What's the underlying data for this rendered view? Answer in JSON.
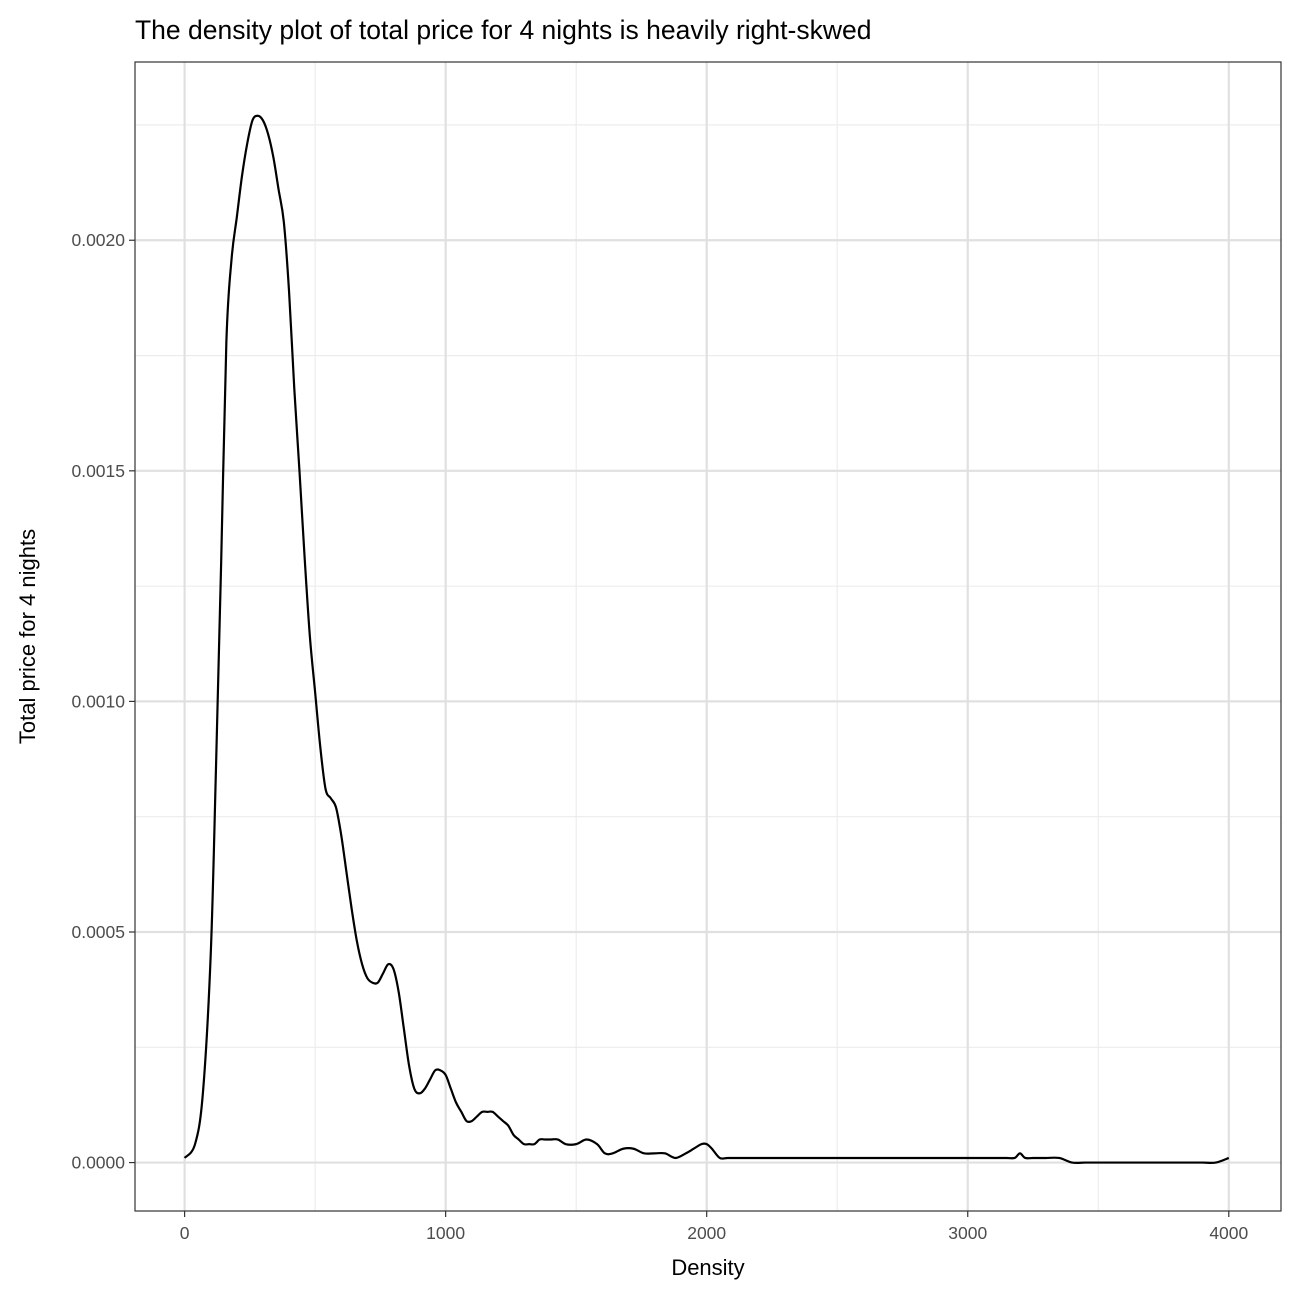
{
  "chart_data": {
    "type": "line",
    "title": "The density plot of total price for 4 nights is heavily right-skwed",
    "xlabel": "Density",
    "ylabel": "Total price for 4 nights",
    "xlim": [
      -190,
      4200
    ],
    "ylim": [
      -0.000105,
      0.0023865
    ],
    "x_ticks": [
      0,
      1000,
      2000,
      3000,
      4000
    ],
    "x_tick_labels": [
      "0",
      "1000",
      "2000",
      "3000",
      "4000"
    ],
    "y_ticks": [
      0,
      0.0005,
      0.001,
      0.0015,
      0.002
    ],
    "y_tick_labels": [
      "0.0000",
      "0.0005",
      "0.0010",
      "0.0015",
      "0.0020"
    ],
    "grid": true,
    "line_color": "#000000",
    "series": [
      {
        "x": [
          0,
          40,
          70,
          100,
          120,
          140,
          160,
          180,
          200,
          220,
          240,
          260,
          280,
          300,
          320,
          340,
          360,
          380,
          400,
          420,
          440,
          460,
          480,
          500,
          520,
          540,
          560,
          580,
          600,
          620,
          640,
          660,
          680,
          700,
          720,
          740,
          760,
          780,
          800,
          820,
          840,
          860,
          880,
          900,
          920,
          940,
          960,
          980,
          1000,
          1020,
          1040,
          1060,
          1080,
          1100,
          1120,
          1140,
          1160,
          1180,
          1200,
          1220,
          1240,
          1260,
          1280,
          1300,
          1320,
          1340,
          1360,
          1380,
          1400,
          1430,
          1460,
          1500,
          1540,
          1580,
          1610,
          1640,
          1680,
          1720,
          1760,
          1800,
          1840,
          1880,
          1920,
          1950,
          1980,
          2000,
          2020,
          2050,
          2080,
          2120,
          2160,
          2200,
          2250,
          2300,
          2350,
          2400,
          2450,
          2500,
          2550,
          2600,
          2650,
          2700,
          2750,
          2800,
          2850,
          2900,
          2950,
          3000,
          3050,
          3100,
          3150,
          3180,
          3200,
          3220,
          3250,
          3300,
          3350,
          3400,
          3450,
          3500,
          3550,
          3600,
          3650,
          3700,
          3750,
          3800,
          3850,
          3900,
          3950,
          4000
        ],
        "y": [
          1e-05,
          4e-05,
          0.00015,
          0.00045,
          0.00085,
          0.0013,
          0.00178,
          0.00196,
          0.00205,
          0.00214,
          0.00221,
          0.00226,
          0.00227,
          0.00226,
          0.00223,
          0.00218,
          0.00211,
          0.00204,
          0.00189,
          0.00168,
          0.0015,
          0.00131,
          0.00114,
          0.00102,
          0.0009,
          0.00081,
          0.00079,
          0.00077,
          0.00071,
          0.00063,
          0.00055,
          0.00048,
          0.00043,
          0.0004,
          0.00039,
          0.00039,
          0.00041,
          0.00043,
          0.00042,
          0.00037,
          0.00029,
          0.00021,
          0.00016,
          0.00015,
          0.00016,
          0.00018,
          0.0002,
          0.0002,
          0.00019,
          0.00016,
          0.00013,
          0.00011,
          9e-05,
          9e-05,
          0.0001,
          0.00011,
          0.00011,
          0.00011,
          0.0001,
          9e-05,
          8e-05,
          6e-05,
          5e-05,
          4e-05,
          4e-05,
          4e-05,
          5e-05,
          5e-05,
          5e-05,
          5e-05,
          4e-05,
          4e-05,
          5e-05,
          4e-05,
          2e-05,
          2e-05,
          3e-05,
          3e-05,
          2e-05,
          2e-05,
          2e-05,
          1e-05,
          2e-05,
          3e-05,
          4e-05,
          4e-05,
          3e-05,
          1e-05,
          1e-05,
          1e-05,
          1e-05,
          1e-05,
          1e-05,
          1e-05,
          1e-05,
          1e-05,
          1e-05,
          1e-05,
          1e-05,
          1e-05,
          1e-05,
          1e-05,
          1e-05,
          1e-05,
          1e-05,
          1e-05,
          1e-05,
          1e-05,
          1e-05,
          1e-05,
          1e-05,
          1e-05,
          2e-05,
          1e-05,
          1e-05,
          1e-05,
          1e-05,
          0.0,
          0.0,
          0.0,
          0.0,
          0.0,
          0.0,
          0.0,
          0.0,
          0.0,
          0.0,
          0.0,
          0.0,
          1e-05
        ]
      }
    ]
  }
}
